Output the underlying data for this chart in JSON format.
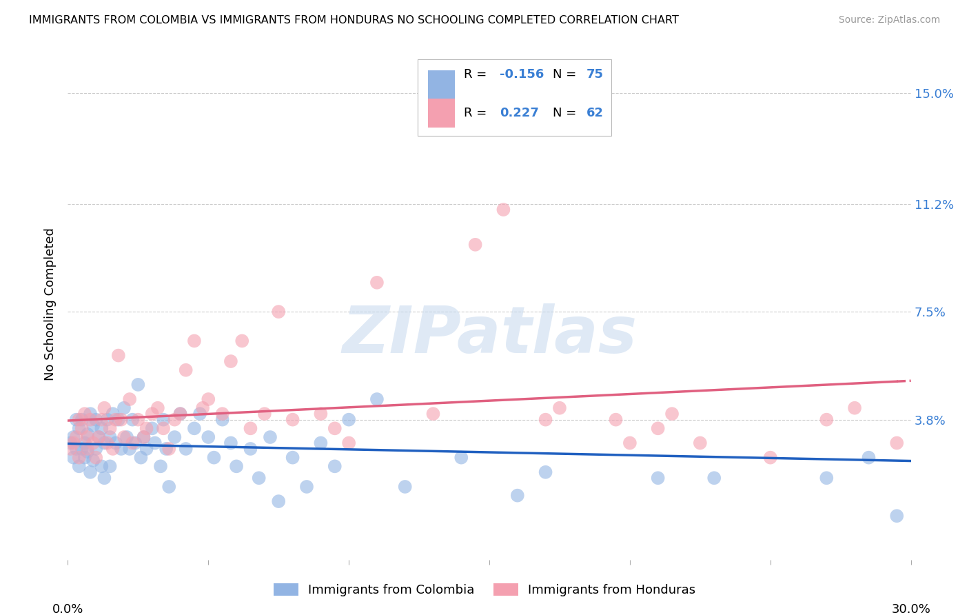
{
  "title": "IMMIGRANTS FROM COLOMBIA VS IMMIGRANTS FROM HONDURAS NO SCHOOLING COMPLETED CORRELATION CHART",
  "source": "Source: ZipAtlas.com",
  "ylabel": "No Schooling Completed",
  "ytick_labels": [
    "3.8%",
    "7.5%",
    "11.2%",
    "15.0%"
  ],
  "ytick_values": [
    0.038,
    0.075,
    0.112,
    0.15
  ],
  "xlim": [
    0.0,
    0.3
  ],
  "ylim": [
    -0.01,
    0.165
  ],
  "colombia_color": "#92b4e3",
  "honduras_color": "#f4a0b0",
  "colombia_R": -0.156,
  "colombia_N": 75,
  "honduras_R": 0.227,
  "honduras_N": 62,
  "colombia_line_color": "#2060c0",
  "honduras_line_color": "#e06080",
  "watermark_text": "ZIPatlas",
  "background_color": "#ffffff",
  "grid_color": "#cccccc",
  "right_label_color": "#3a7fd4",
  "colombia_x": [
    0.001,
    0.002,
    0.002,
    0.003,
    0.003,
    0.004,
    0.004,
    0.005,
    0.005,
    0.006,
    0.006,
    0.007,
    0.007,
    0.008,
    0.008,
    0.009,
    0.009,
    0.01,
    0.01,
    0.011,
    0.012,
    0.012,
    0.013,
    0.013,
    0.014,
    0.015,
    0.015,
    0.016,
    0.017,
    0.018,
    0.019,
    0.02,
    0.021,
    0.022,
    0.023,
    0.024,
    0.025,
    0.026,
    0.027,
    0.028,
    0.03,
    0.031,
    0.033,
    0.034,
    0.035,
    0.036,
    0.038,
    0.04,
    0.042,
    0.045,
    0.047,
    0.05,
    0.052,
    0.055,
    0.058,
    0.06,
    0.065,
    0.068,
    0.072,
    0.075,
    0.08,
    0.085,
    0.09,
    0.095,
    0.1,
    0.11,
    0.12,
    0.14,
    0.16,
    0.17,
    0.21,
    0.23,
    0.27,
    0.285,
    0.295
  ],
  "colombia_y": [
    0.03,
    0.025,
    0.032,
    0.028,
    0.038,
    0.035,
    0.022,
    0.038,
    0.028,
    0.03,
    0.025,
    0.033,
    0.027,
    0.04,
    0.02,
    0.036,
    0.024,
    0.038,
    0.028,
    0.032,
    0.035,
    0.022,
    0.03,
    0.018,
    0.038,
    0.032,
    0.022,
    0.04,
    0.03,
    0.038,
    0.028,
    0.042,
    0.032,
    0.028,
    0.038,
    0.03,
    0.05,
    0.025,
    0.032,
    0.028,
    0.035,
    0.03,
    0.022,
    0.038,
    0.028,
    0.015,
    0.032,
    0.04,
    0.028,
    0.035,
    0.04,
    0.032,
    0.025,
    0.038,
    0.03,
    0.022,
    0.028,
    0.018,
    0.032,
    0.01,
    0.025,
    0.015,
    0.03,
    0.022,
    0.038,
    0.045,
    0.015,
    0.025,
    0.012,
    0.02,
    0.018,
    0.018,
    0.018,
    0.025,
    0.005
  ],
  "honduras_x": [
    0.001,
    0.002,
    0.003,
    0.004,
    0.004,
    0.005,
    0.006,
    0.007,
    0.007,
    0.008,
    0.009,
    0.01,
    0.011,
    0.012,
    0.013,
    0.014,
    0.015,
    0.016,
    0.017,
    0.018,
    0.019,
    0.02,
    0.022,
    0.023,
    0.025,
    0.027,
    0.028,
    0.03,
    0.032,
    0.034,
    0.036,
    0.038,
    0.04,
    0.042,
    0.045,
    0.048,
    0.05,
    0.055,
    0.058,
    0.062,
    0.065,
    0.07,
    0.075,
    0.08,
    0.09,
    0.095,
    0.1,
    0.11,
    0.13,
    0.145,
    0.155,
    0.17,
    0.175,
    0.195,
    0.2,
    0.21,
    0.215,
    0.225,
    0.25,
    0.27,
    0.28,
    0.295
  ],
  "honduras_y": [
    0.028,
    0.03,
    0.032,
    0.038,
    0.025,
    0.035,
    0.04,
    0.028,
    0.032,
    0.038,
    0.03,
    0.025,
    0.032,
    0.038,
    0.042,
    0.03,
    0.035,
    0.028,
    0.038,
    0.06,
    0.038,
    0.032,
    0.045,
    0.03,
    0.038,
    0.032,
    0.035,
    0.04,
    0.042,
    0.035,
    0.028,
    0.038,
    0.04,
    0.055,
    0.065,
    0.042,
    0.045,
    0.04,
    0.058,
    0.065,
    0.035,
    0.04,
    0.075,
    0.038,
    0.04,
    0.035,
    0.03,
    0.085,
    0.04,
    0.098,
    0.11,
    0.038,
    0.042,
    0.038,
    0.03,
    0.035,
    0.04,
    0.03,
    0.025,
    0.038,
    0.042,
    0.03
  ]
}
